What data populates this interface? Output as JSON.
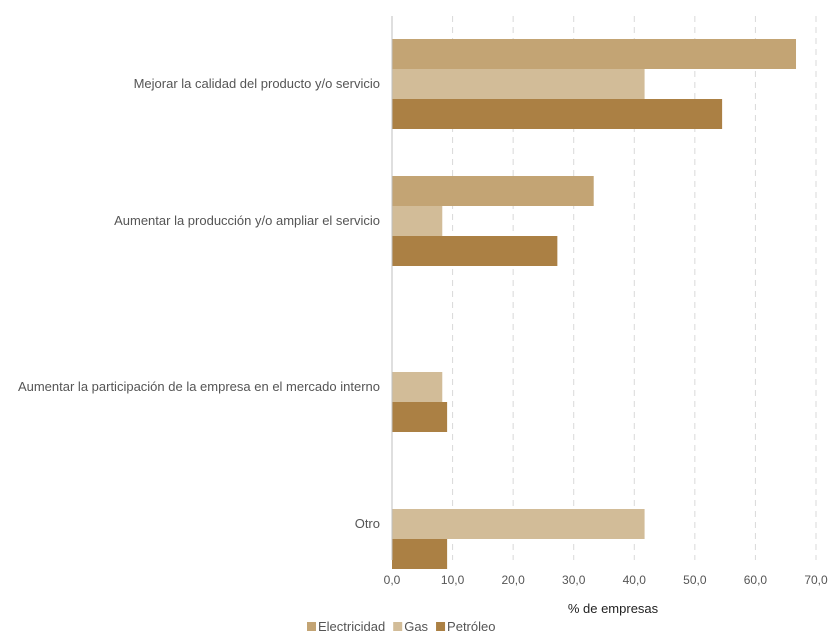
{
  "chart_data": {
    "type": "bar",
    "orientation": "horizontal",
    "categories": [
      "Mejorar la calidad del producto y/o servicio",
      "Aumentar la producción y/o ampliar el servicio",
      "Aumentar la participación de la empresa en el mercado interno",
      "Otro"
    ],
    "series": [
      {
        "name": "Electricidad",
        "color": "#c3a474",
        "values": [
          66.7,
          33.3,
          null,
          null
        ]
      },
      {
        "name": "Gas",
        "color": "#d2bc98",
        "values": [
          41.7,
          8.3,
          8.3,
          41.7
        ]
      },
      {
        "name": "Petróleo",
        "color": "#ab8044",
        "values": [
          54.5,
          27.3,
          9.1,
          9.1
        ]
      }
    ],
    "xlim": [
      0,
      70
    ],
    "xticks": [
      0,
      10,
      20,
      30,
      40,
      50,
      60,
      70
    ],
    "xtick_labels": [
      "0,0",
      "10,0",
      "20,0",
      "30,0",
      "40,0",
      "50,0",
      "60,0",
      "70,0"
    ],
    "xlabel": "% de empresas",
    "title": "",
    "ylabel": "",
    "grid": "vertical dashed",
    "legend_position": "bottom-center"
  }
}
